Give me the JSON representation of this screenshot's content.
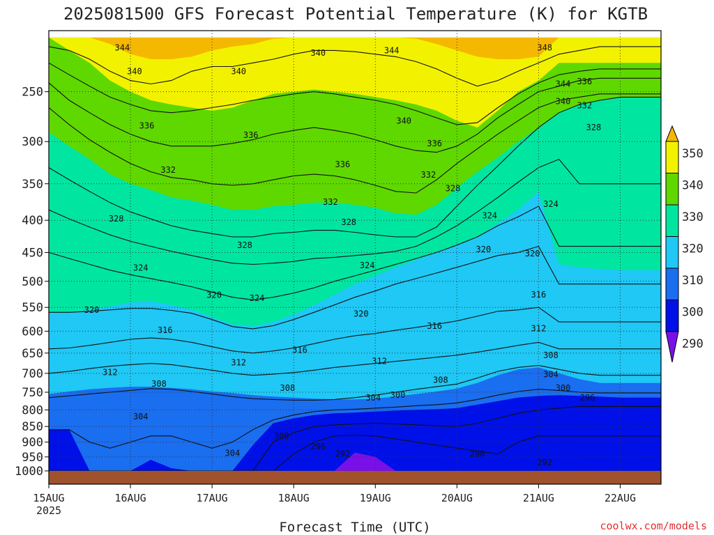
{
  "chart_data": {
    "type": "contour",
    "title": "2025081500 GFS Forecast Potential Temperature (K) for KGTB",
    "xlabel": "Forecast Time (UTC)",
    "ylabel": "",
    "credit": "coolwx.com/models",
    "x_tick_labels": [
      "15AUG",
      "16AUG",
      "17AUG",
      "18AUG",
      "19AUG",
      "20AUG",
      "21AUG",
      "22AUG"
    ],
    "x_year_label": "2025",
    "x_range": [
      "2025-08-15 00Z",
      "2025-08-22 12Z"
    ],
    "y_tick_labels": [
      "250",
      "300",
      "350",
      "400",
      "450",
      "500",
      "550",
      "600",
      "650",
      "700",
      "750",
      "800",
      "850",
      "900",
      "950",
      "1000"
    ],
    "y_range": [
      1000,
      200
    ],
    "y_scale": "log-pressure",
    "grid": true,
    "colorbar": {
      "placement": "right",
      "labels": [
        "350",
        "340",
        "330",
        "320",
        "310",
        "300",
        "290"
      ],
      "bins": [
        {
          "range": [
            350,
            360
          ],
          "color": "#f5b800"
        },
        {
          "range": [
            340,
            350
          ],
          "color": "#f2f200"
        },
        {
          "range": [
            330,
            340
          ],
          "color": "#5fd800"
        },
        {
          "range": [
            320,
            330
          ],
          "color": "#00e6a0"
        },
        {
          "range": [
            310,
            320
          ],
          "color": "#1fc8f5"
        },
        {
          "range": [
            300,
            310
          ],
          "color": "#1a6ef0"
        },
        {
          "range": [
            290,
            300
          ],
          "color": "#0010e8"
        },
        {
          "range": [
            280,
            290
          ],
          "color": "#7a10e8"
        }
      ]
    },
    "ground_color": "#a0522d",
    "series": [
      {
        "name": "350",
        "color": "#f5b800",
        "values": [
          205,
          205,
          205,
          205,
          205,
          205,
          205,
          205,
          205,
          205,
          205,
          205,
          205,
          205,
          205,
          205,
          205,
          205,
          205,
          205,
          205,
          205,
          205,
          205,
          205,
          205,
          205,
          205,
          205,
          205,
          205
        ]
      },
      {
        "name": "340",
        "color": "#f2f200",
        "values": [
          205,
          205,
          205,
          210,
          218,
          222,
          222,
          220,
          215,
          212,
          210,
          206,
          205,
          205,
          205,
          205,
          205,
          205,
          206,
          210,
          215,
          220,
          222,
          222,
          220,
          205,
          205,
          205,
          205,
          205,
          205
        ]
      },
      {
        "name": "330",
        "color": "#5fd800",
        "values": [
          205,
          215,
          225,
          240,
          250,
          258,
          262,
          265,
          268,
          265,
          258,
          252,
          250,
          248,
          250,
          252,
          255,
          258,
          262,
          268,
          278,
          285,
          268,
          250,
          240,
          225,
          225,
          225,
          225,
          225,
          225
        ]
      },
      {
        "name": "320",
        "color": "#00e6a0",
        "values": [
          290,
          305,
          320,
          338,
          350,
          358,
          368,
          372,
          378,
          385,
          385,
          380,
          378,
          375,
          375,
          378,
          382,
          390,
          392,
          378,
          355,
          335,
          318,
          300,
          285,
          270,
          262,
          258,
          255,
          255,
          255
        ]
      },
      {
        "name": "310",
        "color": "#1fc8f5",
        "values": [
          560,
          560,
          555,
          548,
          540,
          538,
          545,
          555,
          570,
          585,
          590,
          580,
          565,
          545,
          525,
          505,
          490,
          475,
          462,
          450,
          438,
          425,
          405,
          385,
          360,
          470,
          475,
          478,
          480,
          480,
          480
        ]
      },
      {
        "name": "300",
        "color": "#1a6ef0",
        "values": [
          755,
          748,
          742,
          738,
          735,
          735,
          738,
          742,
          748,
          752,
          758,
          762,
          765,
          768,
          770,
          770,
          768,
          762,
          755,
          748,
          740,
          725,
          705,
          690,
          685,
          700,
          715,
          725,
          725,
          725,
          725
        ]
      },
      {
        "name": "290",
        "color": "#0010e8",
        "values": [
          860,
          860,
          1000,
          1000,
          1000,
          960,
          990,
          1000,
          1000,
          1000,
          910,
          840,
          825,
          815,
          810,
          808,
          805,
          802,
          800,
          798,
          795,
          785,
          775,
          765,
          760,
          758,
          760,
          762,
          765,
          765,
          765
        ]
      },
      {
        "name": "280",
        "color": "#7a10e8",
        "values": [
          1000,
          1000,
          1000,
          1000,
          1000,
          1000,
          1000,
          1000,
          1000,
          1000,
          1000,
          1000,
          1000,
          1000,
          1000,
          935,
          950,
          1000,
          1000,
          1000,
          1000,
          1000,
          1000,
          1000,
          1000,
          1000,
          1000,
          1000,
          1000,
          1000,
          1000
        ]
      }
    ],
    "isentropes": [
      {
        "value": "344",
        "values": [
          212,
          215,
          222,
          232,
          240,
          243,
          240,
          232,
          228,
          228,
          225,
          222,
          218,
          215,
          215,
          216,
          218,
          220,
          224,
          230,
          238,
          245,
          240,
          232,
          225,
          218,
          215,
          212,
          212,
          212,
          212
        ]
      },
      {
        "value": "340",
        "values": [
          225,
          235,
          245,
          255,
          262,
          268,
          270,
          268,
          265,
          262,
          258,
          255,
          252,
          250,
          252,
          255,
          258,
          262,
          268,
          275,
          282,
          280,
          265,
          252,
          242,
          235,
          232,
          230,
          230,
          230,
          230
        ]
      },
      {
        "value": "336",
        "values": [
          242,
          258,
          270,
          282,
          292,
          300,
          305,
          305,
          305,
          302,
          298,
          292,
          288,
          285,
          288,
          292,
          298,
          305,
          310,
          312,
          305,
          292,
          275,
          262,
          250,
          245,
          240,
          238,
          238,
          238,
          238
        ]
      },
      {
        "value": "332",
        "values": [
          265,
          282,
          298,
          312,
          325,
          335,
          342,
          345,
          350,
          352,
          350,
          345,
          340,
          338,
          340,
          345,
          352,
          360,
          362,
          345,
          325,
          308,
          292,
          278,
          265,
          258,
          255,
          252,
          252,
          252,
          252
        ]
      },
      {
        "value": "328",
        "values": [
          330,
          345,
          360,
          375,
          388,
          398,
          408,
          415,
          420,
          425,
          425,
          420,
          418,
          415,
          415,
          418,
          422,
          425,
          425,
          410,
          380,
          352,
          328,
          305,
          285,
          270,
          262,
          258,
          255,
          255,
          255
        ]
      },
      {
        "value": "324",
        "values": [
          385,
          398,
          410,
          422,
          432,
          440,
          448,
          455,
          462,
          468,
          470,
          468,
          465,
          460,
          458,
          455,
          452,
          448,
          440,
          425,
          408,
          388,
          368,
          348,
          330,
          320,
          350,
          350,
          350,
          350,
          350
        ]
      },
      {
        "value": "320",
        "values": [
          450,
          460,
          470,
          480,
          488,
          495,
          502,
          510,
          520,
          530,
          535,
          530,
          522,
          512,
          500,
          490,
          480,
          470,
          460,
          450,
          438,
          425,
          408,
          395,
          380,
          440,
          440,
          440,
          440,
          440,
          440
        ]
      },
      {
        "value": "316",
        "values": [
          560,
          560,
          558,
          555,
          552,
          552,
          556,
          562,
          575,
          590,
          595,
          588,
          575,
          560,
          545,
          530,
          518,
          505,
          495,
          485,
          475,
          465,
          455,
          450,
          440,
          505,
          505,
          505,
          505,
          505,
          505
        ]
      },
      {
        "value": "312",
        "values": [
          640,
          638,
          632,
          625,
          618,
          615,
          618,
          625,
          635,
          645,
          650,
          645,
          638,
          628,
          618,
          610,
          605,
          598,
          592,
          585,
          578,
          568,
          558,
          555,
          550,
          580,
          580,
          580,
          580,
          580,
          580
        ]
      },
      {
        "value": "308",
        "values": [
          700,
          695,
          688,
          682,
          678,
          675,
          678,
          685,
          692,
          700,
          705,
          702,
          698,
          692,
          685,
          680,
          675,
          670,
          665,
          660,
          655,
          648,
          640,
          632,
          625,
          640,
          640,
          640,
          640,
          640,
          640
        ]
      },
      {
        "value": "304",
        "values": [
          765,
          760,
          755,
          750,
          745,
          740,
          742,
          748,
          755,
          762,
          768,
          770,
          772,
          772,
          770,
          765,
          758,
          750,
          742,
          735,
          728,
          712,
          695,
          685,
          680,
          690,
          700,
          705,
          705,
          705,
          705
        ]
      },
      {
        "value": "300",
        "values": [
          860,
          860,
          900,
          920,
          900,
          880,
          880,
          900,
          920,
          900,
          860,
          830,
          815,
          805,
          800,
          798,
          795,
          792,
          788,
          785,
          780,
          770,
          758,
          748,
          742,
          745,
          750,
          752,
          752,
          752,
          752
        ]
      },
      {
        "value": "296",
        "values": [
          1000,
          1000,
          1000,
          1000,
          1000,
          1000,
          1000,
          1000,
          1000,
          1000,
          1000,
          900,
          870,
          850,
          845,
          842,
          840,
          842,
          845,
          848,
          850,
          840,
          825,
          810,
          800,
          795,
          790,
          790,
          790,
          790,
          790
        ]
      },
      {
        "value": "292",
        "values": [
          1000,
          1000,
          1000,
          1000,
          1000,
          1000,
          1000,
          1000,
          1000,
          1000,
          1000,
          1000,
          940,
          900,
          880,
          878,
          880,
          890,
          900,
          910,
          920,
          930,
          940,
          900,
          880,
          880,
          880,
          880,
          880,
          880,
          880
        ]
      }
    ],
    "contour_labels": [
      {
        "text": "344",
        "x": 0.12,
        "p": 213
      },
      {
        "text": "340",
        "x": 0.14,
        "p": 232
      },
      {
        "text": "336",
        "x": 0.16,
        "p": 283
      },
      {
        "text": "340",
        "x": 0.31,
        "p": 232
      },
      {
        "text": "336",
        "x": 0.33,
        "p": 293
      },
      {
        "text": "332",
        "x": 0.195,
        "p": 333
      },
      {
        "text": "328",
        "x": 0.11,
        "p": 398
      },
      {
        "text": "340",
        "x": 0.44,
        "p": 217
      },
      {
        "text": "344",
        "x": 0.56,
        "p": 215
      },
      {
        "text": "340",
        "x": 0.58,
        "p": 278
      },
      {
        "text": "336",
        "x": 0.48,
        "p": 326
      },
      {
        "text": "332",
        "x": 0.46,
        "p": 374
      },
      {
        "text": "336",
        "x": 0.63,
        "p": 302
      },
      {
        "text": "332",
        "x": 0.62,
        "p": 339
      },
      {
        "text": "328",
        "x": 0.32,
        "p": 438
      },
      {
        "text": "328",
        "x": 0.49,
        "p": 403
      },
      {
        "text": "328",
        "x": 0.66,
        "p": 356
      },
      {
        "text": "324",
        "x": 0.15,
        "p": 476
      },
      {
        "text": "324",
        "x": 0.52,
        "p": 472
      },
      {
        "text": "324",
        "x": 0.34,
        "p": 532
      },
      {
        "text": "324",
        "x": 0.72,
        "p": 393
      },
      {
        "text": "324",
        "x": 0.82,
        "p": 377
      },
      {
        "text": "320",
        "x": 0.07,
        "p": 555
      },
      {
        "text": "320",
        "x": 0.27,
        "p": 526
      },
      {
        "text": "320",
        "x": 0.51,
        "p": 563
      },
      {
        "text": "320",
        "x": 0.71,
        "p": 445
      },
      {
        "text": "320",
        "x": 0.79,
        "p": 452
      },
      {
        "text": "316",
        "x": 0.19,
        "p": 598
      },
      {
        "text": "316",
        "x": 0.41,
        "p": 643
      },
      {
        "text": "316",
        "x": 0.63,
        "p": 589
      },
      {
        "text": "316",
        "x": 0.8,
        "p": 525
      },
      {
        "text": "312",
        "x": 0.1,
        "p": 697
      },
      {
        "text": "312",
        "x": 0.31,
        "p": 673
      },
      {
        "text": "312",
        "x": 0.54,
        "p": 670
      },
      {
        "text": "312",
        "x": 0.8,
        "p": 594
      },
      {
        "text": "308",
        "x": 0.18,
        "p": 727
      },
      {
        "text": "308",
        "x": 0.39,
        "p": 739
      },
      {
        "text": "308",
        "x": 0.64,
        "p": 717
      },
      {
        "text": "308",
        "x": 0.82,
        "p": 655
      },
      {
        "text": "304",
        "x": 0.15,
        "p": 820
      },
      {
        "text": "304",
        "x": 0.3,
        "p": 937
      },
      {
        "text": "304",
        "x": 0.53,
        "p": 765
      },
      {
        "text": "304",
        "x": 0.82,
        "p": 703
      },
      {
        "text": "300",
        "x": 0.38,
        "p": 880
      },
      {
        "text": "300",
        "x": 0.57,
        "p": 758
      },
      {
        "text": "300",
        "x": 0.84,
        "p": 739
      },
      {
        "text": "296",
        "x": 0.44,
        "p": 915
      },
      {
        "text": "296",
        "x": 0.7,
        "p": 940
      },
      {
        "text": "296",
        "x": 0.88,
        "p": 765
      },
      {
        "text": "292",
        "x": 0.48,
        "p": 940
      },
      {
        "text": "292",
        "x": 0.81,
        "p": 970
      },
      {
        "text": "348",
        "x": 0.81,
        "p": 213
      },
      {
        "text": "344",
        "x": 0.84,
        "p": 243
      },
      {
        "text": "340",
        "x": 0.84,
        "p": 259
      },
      {
        "text": "336",
        "x": 0.875,
        "p": 241
      },
      {
        "text": "332",
        "x": 0.875,
        "p": 263
      },
      {
        "text": "328",
        "x": 0.89,
        "p": 285
      }
    ]
  }
}
